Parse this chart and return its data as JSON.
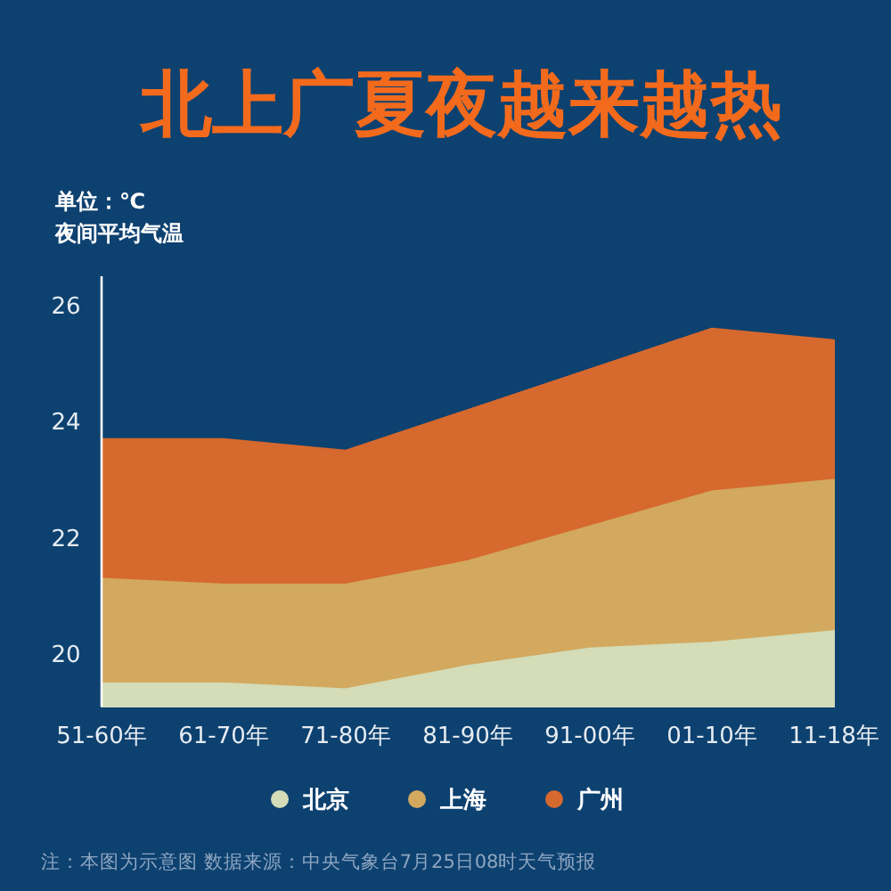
{
  "chart_data": {
    "type": "area",
    "title": "北上广夏夜越来越热",
    "ylabel": "单位：℃",
    "subtitle": "夜间平均气温",
    "categories": [
      "51-60年",
      "61-70年",
      "71-80年",
      "81-90年",
      "91-00年",
      "01-10年",
      "11-18年"
    ],
    "series": [
      {
        "name": "北京",
        "color": "#d4dcb8",
        "values": [
          19.5,
          19.5,
          19.4,
          19.8,
          20.1,
          20.2,
          20.4
        ]
      },
      {
        "name": "上海",
        "color": "#d2a95f",
        "values": [
          21.3,
          21.2,
          21.2,
          21.6,
          22.2,
          22.8,
          23.0
        ]
      },
      {
        "name": "广州",
        "color": "#d6692e",
        "values": [
          23.7,
          23.7,
          23.5,
          24.2,
          24.9,
          25.6,
          25.4
        ]
      }
    ],
    "ylim": [
      19.1,
      26.5
    ],
    "yticks": [
      20,
      22,
      24,
      26
    ],
    "legend": "bottom",
    "annotations": [
      "注：本图为示意图 数据来源：中央气象台7月25日08时天气预报"
    ]
  }
}
